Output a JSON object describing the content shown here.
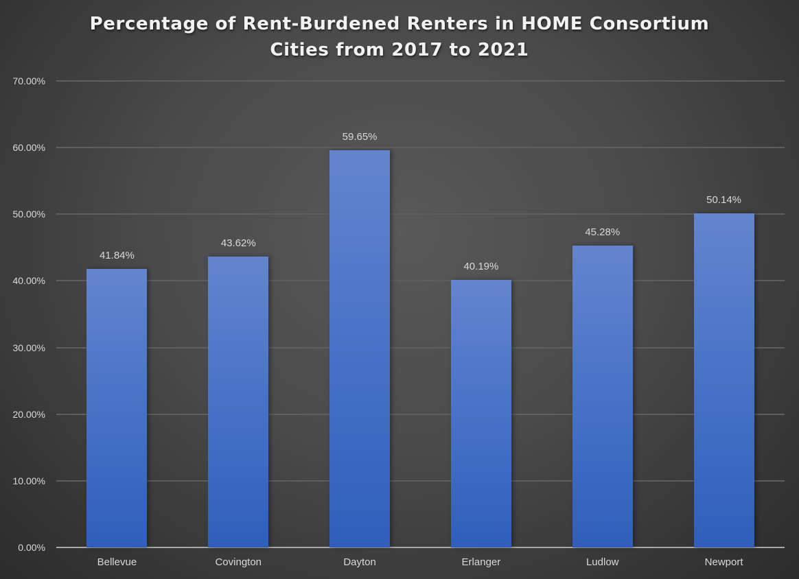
{
  "chart_data": {
    "type": "bar",
    "title": "Percentage of Rent-Burdened Renters in HOME Consortium Cities from 2017 to 2021",
    "title_lines": [
      "Percentage of Rent-Burdened Renters in HOME Consortium",
      "Cities from 2017 to 2021"
    ],
    "xlabel": "",
    "ylabel": "",
    "categories": [
      "Bellevue",
      "Covington",
      "Dayton",
      "Erlanger",
      "Ludlow",
      "Newport"
    ],
    "values": [
      41.84,
      43.62,
      59.65,
      40.19,
      45.28,
      50.14
    ],
    "value_labels": [
      "41.84%",
      "43.62%",
      "59.65%",
      "40.19%",
      "45.28%",
      "50.14%"
    ],
    "ylim": [
      0,
      70
    ],
    "yticks": [
      0,
      10,
      20,
      30,
      40,
      50,
      60,
      70
    ],
    "ytick_labels": [
      "0.00%",
      "10.00%",
      "20.00%",
      "30.00%",
      "40.00%",
      "50.00%",
      "60.00%",
      "70.00%"
    ],
    "grid": true,
    "legend": null,
    "colors": {
      "bar": "#4472c4",
      "background": "#404040",
      "text": "#d9d9d9",
      "title": "#f2f2f2"
    }
  }
}
